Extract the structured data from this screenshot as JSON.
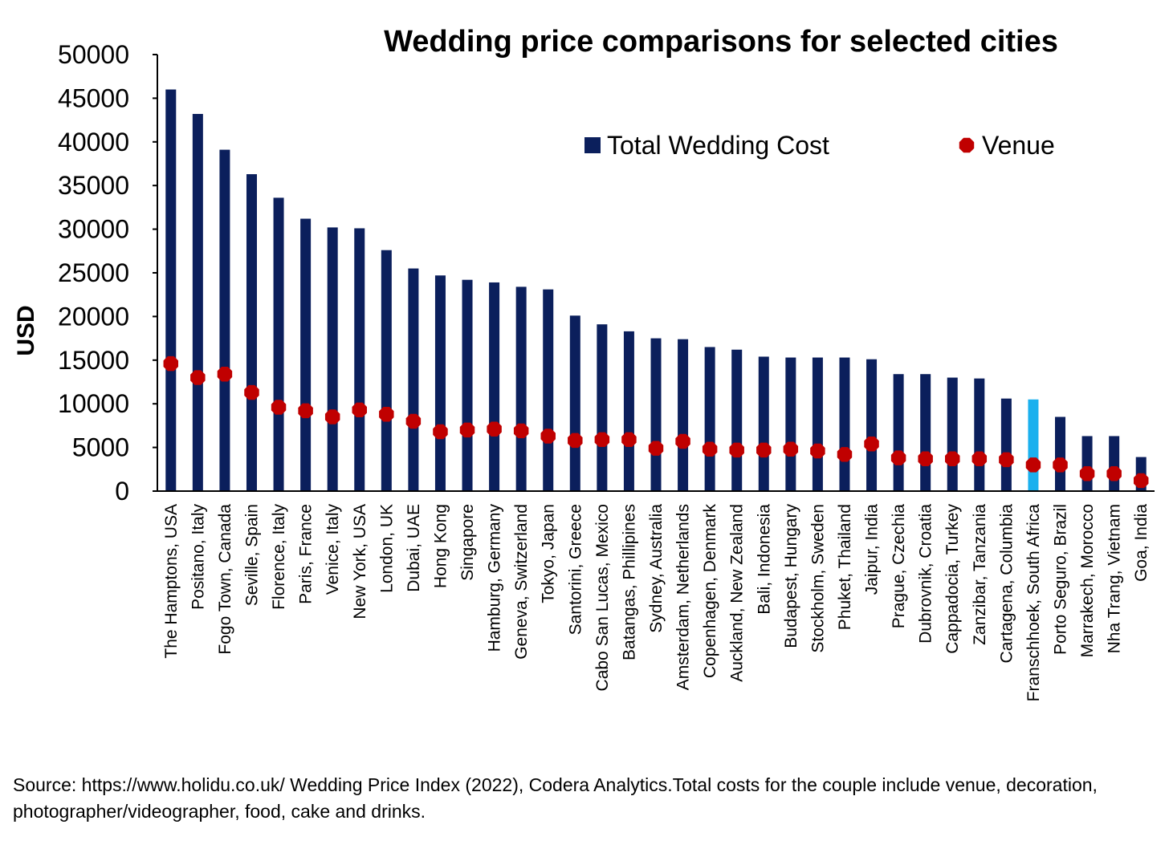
{
  "chart_data": {
    "type": "bar",
    "title": "Wedding price comparisons for selected cities",
    "ylabel": "USD",
    "xlabel": "",
    "ylim": [
      0,
      50000
    ],
    "yticks": [
      0,
      5000,
      10000,
      15000,
      20000,
      25000,
      30000,
      35000,
      40000,
      45000,
      50000
    ],
    "legend_position": "top-right",
    "categories": [
      "The Hamptons, USA",
      "Positano, Italy",
      "Fogo Town, Canada",
      "Seville, Spain",
      "Florence, Italy",
      "Paris, France",
      "Venice, Italy",
      "New York, USA",
      "London, UK",
      "Dubai, UAE",
      "Hong Kong",
      "Singapore",
      "Hamburg, Germany",
      "Geneva, Switzerland",
      "Tokyo, Japan",
      "Santorini, Greece",
      "Cabo San Lucas, Mexico",
      "Batangas, Phillipines",
      "Sydney, Australia",
      "Amsterdam, Netherlands",
      "Copenhagen, Denmark",
      "Auckland, New Zealand",
      "Bali, Indonesia",
      "Budapest, Hungary",
      "Stockholm, Sweden",
      "Phuket, Thailand",
      "Jaipur, India",
      "Prague, Czechia",
      "Dubrovnik, Croatia",
      "Cappadocia, Turkey",
      "Zanzibar, Tanzania",
      "Cartagena, Columbia",
      "Franschhoek, South Africa",
      "Porto Seguro, Brazil",
      "Marrakech, Morocco",
      "Nha Trang, Vietnam",
      "Goa, India"
    ],
    "series": [
      {
        "name": "Total Wedding Cost",
        "kind": "bar",
        "color": "#0b1f5c",
        "highlight_color": "#1ab0ee",
        "highlight_category": "Franschhoek, South Africa",
        "values": [
          46000,
          43200,
          39100,
          36300,
          33600,
          31200,
          30200,
          30100,
          27600,
          25500,
          24700,
          24200,
          23900,
          23400,
          23100,
          20100,
          19100,
          18300,
          17500,
          17400,
          16500,
          16200,
          15400,
          15300,
          15300,
          15300,
          15100,
          13400,
          13400,
          13000,
          12900,
          10600,
          10500,
          8500,
          6300,
          6300,
          3900
        ]
      },
      {
        "name": "Venue",
        "kind": "marker",
        "color": "#c00000",
        "values": [
          14600,
          13000,
          13400,
          11300,
          9600,
          9200,
          8500,
          9300,
          8800,
          8000,
          6800,
          7000,
          7100,
          6900,
          6300,
          5800,
          5900,
          5900,
          4900,
          5700,
          4800,
          4700,
          4700,
          4800,
          4600,
          4200,
          5400,
          3800,
          3700,
          3700,
          3700,
          3600,
          3000,
          3000,
          2000,
          2000,
          1200
        ]
      }
    ]
  },
  "source_note": "Source: https://www.holidu.co.uk/ Wedding Price Index (2022), Codera Analytics.Total costs for the couple include venue, decoration, photographer/videographer, food, cake and drinks."
}
